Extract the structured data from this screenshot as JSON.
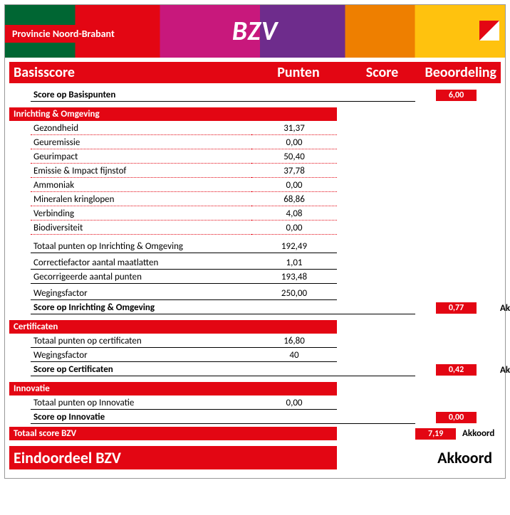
{
  "banner": {
    "provincie": "Provincie Noord-Brabant",
    "title": "BZV",
    "stripe_colors": [
      "#006633",
      "#E30613",
      "#C8187C",
      "#6E2C8C",
      "#EE7F00",
      "#FFC20E"
    ],
    "logo_colors": {
      "upper": "#E30613",
      "lower": "#FFFFFF",
      "bg": "#E0E0DC"
    }
  },
  "columns": {
    "basis": "Basisscore",
    "punten": "Punten",
    "score": "Score",
    "beoordeling": "Beoordeling"
  },
  "basis": {
    "score_label": "Score op Basispunten",
    "score": "6,00"
  },
  "inrichting": {
    "title": "Inrichting & Omgeving",
    "rows": [
      {
        "label": "Gezondheid",
        "value": "31,37"
      },
      {
        "label": "Geuremissie",
        "value": "0,00"
      },
      {
        "label": "Geurimpact",
        "value": "50,40"
      },
      {
        "label": "Emissie & Impact fijnstof",
        "value": "37,78"
      },
      {
        "label": "Ammoniak",
        "value": "0,00"
      },
      {
        "label": "Mineralen kringlopen",
        "value": "68,86"
      },
      {
        "label": "Verbinding",
        "value": "4,08"
      },
      {
        "label": "Biodiversiteit",
        "value": "0,00"
      }
    ],
    "totaal_label": "Totaal punten op Inrichting & Omgeving",
    "totaal_value": "192,49",
    "corrfactor_label": "Correctiefactor aantal maatlatten",
    "corrfactor_value": "1,01",
    "gecorr_label": "Gecorrigeerde aantal punten",
    "gecorr_value": "193,48",
    "weging_label": "Wegingsfactor",
    "weging_value": "250,00",
    "score_label": "Score op Inrichting & Omgeving",
    "score_value": "0,77",
    "beoordeling": "Akkoord"
  },
  "certificaten": {
    "title": "Certificaten",
    "totaal_label": "Totaal punten op certificaten",
    "totaal_value": "16,80",
    "weging_label": "Wegingsfactor",
    "weging_value": "40",
    "score_label": "Score op Certificaten",
    "score_value": "0,42",
    "beoordeling": "Akkoord"
  },
  "innovatie": {
    "title": "Innovatie",
    "totaal_label": "Totaal punten op Innovatie",
    "totaal_value": "0,00",
    "score_label": "Score op Innovatie",
    "score_value": "0,00"
  },
  "totaal": {
    "label": "Totaal score BZV",
    "value": "7,19",
    "beoordeling": "Akkoord"
  },
  "eind": {
    "label": "Eindoordeel BZV",
    "beoordeling": "Akkoord"
  },
  "colors": {
    "accent": "#E30613",
    "text": "#000000"
  }
}
